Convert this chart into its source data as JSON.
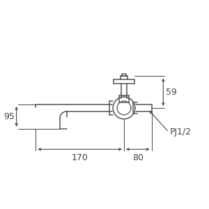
{
  "bg_color": "#ffffff",
  "line_color": "#555555",
  "dim_color": "#444444",
  "fig_size": [
    3.0,
    3.0
  ],
  "dpi": 100,
  "dim_59": "59",
  "dim_95": "95",
  "dim_170": "170",
  "dim_80": "80",
  "label_pj": "PJ1/2",
  "xlim": [
    0,
    300
  ],
  "ylim": [
    0,
    300
  ]
}
